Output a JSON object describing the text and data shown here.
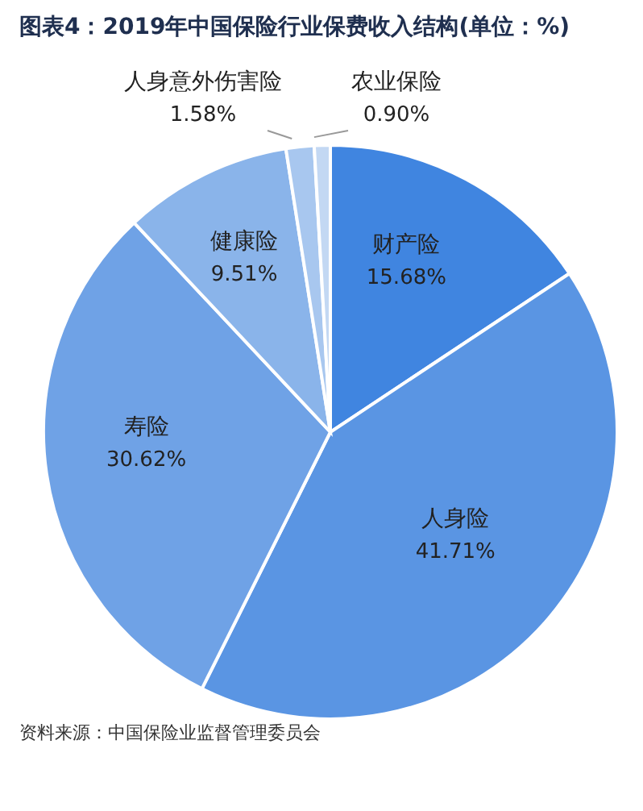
{
  "chart_data": {
    "type": "pie",
    "title": "图表4：2019年中国保险行业保费收入结构(单位：%)",
    "categories": [
      "财产险",
      "人身险",
      "寿险",
      "健康险",
      "人身意外伤害险",
      "农业保险"
    ],
    "values": [
      15.68,
      41.71,
      30.62,
      9.51,
      1.58,
      0.9
    ],
    "value_labels": [
      "15.68%",
      "41.71%",
      "30.62%",
      "9.51%",
      "1.58%",
      "0.90%"
    ],
    "colors": [
      "#4085e0",
      "#5a95e3",
      "#6fa2e6",
      "#8ab4ea",
      "#a8c7ef",
      "#c3d8f3"
    ],
    "annotations": [
      "资料来源：中国保险业监督管理委员会"
    ],
    "legend": false
  }
}
